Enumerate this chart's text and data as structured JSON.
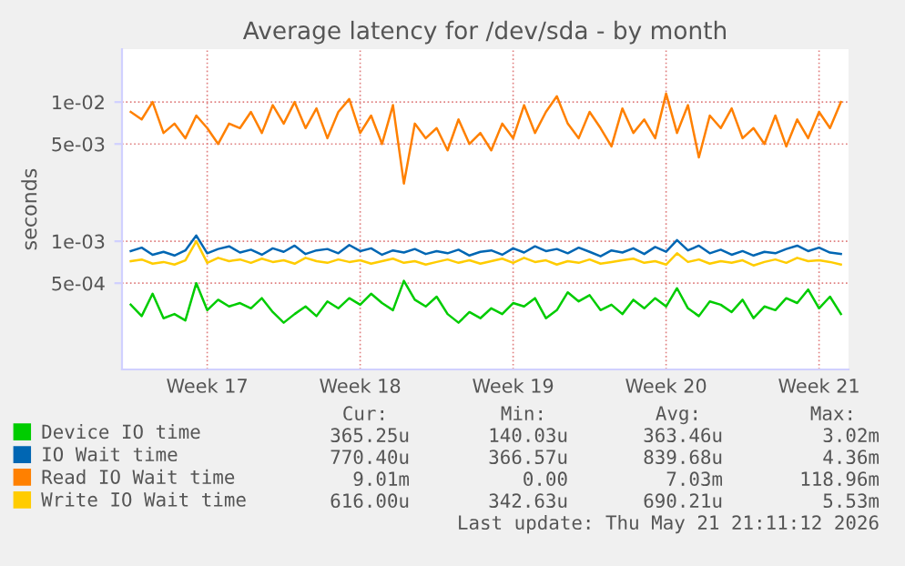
{
  "chart_data": {
    "type": "line",
    "title": "Average latency for /dev/sda - by month",
    "ylabel": "seconds",
    "categories": [
      null,
      null,
      null,
      null,
      null,
      null,
      null,
      "Week 17",
      null,
      null,
      null,
      null,
      null,
      null,
      null,
      null,
      null,
      null,
      null,
      null,
      null,
      "Week 18",
      null,
      null,
      null,
      null,
      null,
      null,
      null,
      null,
      null,
      null,
      null,
      null,
      null,
      "Week 19",
      null,
      null,
      null,
      null,
      null,
      null,
      null,
      null,
      null,
      null,
      null,
      null,
      null,
      "Week 20",
      null,
      null,
      null,
      null,
      null,
      null,
      null,
      null,
      null,
      null,
      null,
      null,
      null,
      "Week 21",
      null,
      null
    ],
    "series": [
      {
        "name": "Device IO time",
        "color": "#00cc00",
        "values": [
          0.00035,
          0.00029,
          0.00042,
          0.00028,
          0.0003,
          0.00027,
          0.0005,
          0.00032,
          0.00038,
          0.00034,
          0.00036,
          0.00033,
          0.00039,
          0.00031,
          0.00026,
          0.0003,
          0.00034,
          0.00029,
          0.00037,
          0.00033,
          0.00039,
          0.00035,
          0.00042,
          0.00036,
          0.00032,
          0.00052,
          0.00038,
          0.00034,
          0.0004,
          0.0003,
          0.00026,
          0.00031,
          0.00028,
          0.00033,
          0.0003,
          0.00036,
          0.00034,
          0.00039,
          0.00028,
          0.00032,
          0.00043,
          0.00037,
          0.00041,
          0.00032,
          0.00035,
          0.0003,
          0.00038,
          0.00033,
          0.00039,
          0.00034,
          0.00046,
          0.00033,
          0.00029,
          0.00037,
          0.00035,
          0.00031,
          0.00038,
          0.00028,
          0.00034,
          0.00032,
          0.00039,
          0.00036,
          0.00045,
          0.00033,
          0.0004,
          0.0003
        ]
      },
      {
        "name": "IO Wait time",
        "color": "#0066b3",
        "values": [
          0.00085,
          0.0009,
          0.0008,
          0.00084,
          0.00079,
          0.00086,
          0.0011,
          0.00082,
          0.00088,
          0.00092,
          0.00083,
          0.00087,
          0.0008,
          0.00089,
          0.00084,
          0.00093,
          0.00081,
          0.00086,
          0.00088,
          0.00082,
          0.00094,
          0.00085,
          0.00089,
          0.0008,
          0.00086,
          0.00083,
          0.00088,
          0.00081,
          0.00085,
          0.00082,
          0.00087,
          0.00079,
          0.00084,
          0.00086,
          0.0008,
          0.00089,
          0.00083,
          0.00092,
          0.00085,
          0.00088,
          0.00082,
          0.0009,
          0.00084,
          0.00078,
          0.00086,
          0.00083,
          0.00089,
          0.00081,
          0.00091,
          0.00084,
          0.00102,
          0.00086,
          0.00093,
          0.00082,
          0.00087,
          0.0008,
          0.00085,
          0.00079,
          0.00084,
          0.00082,
          0.00088,
          0.00093,
          0.00085,
          0.0009,
          0.00083,
          0.00081
        ]
      },
      {
        "name": "Read IO Wait time",
        "color": "#ff8000",
        "values": [
          0.0085,
          0.0075,
          0.01,
          0.006,
          0.007,
          0.0055,
          0.008,
          0.0065,
          0.005,
          0.007,
          0.0065,
          0.0085,
          0.006,
          0.0095,
          0.007,
          0.01,
          0.0065,
          0.009,
          0.0055,
          0.0085,
          0.0105,
          0.006,
          0.008,
          0.005,
          0.0095,
          0.0026,
          0.007,
          0.0055,
          0.0065,
          0.0045,
          0.0075,
          0.005,
          0.006,
          0.0045,
          0.007,
          0.0055,
          0.0095,
          0.006,
          0.0085,
          0.011,
          0.007,
          0.0055,
          0.0085,
          0.0065,
          0.0048,
          0.009,
          0.006,
          0.0075,
          0.0055,
          0.0115,
          0.006,
          0.0095,
          0.004,
          0.008,
          0.0065,
          0.009,
          0.0055,
          0.0065,
          0.005,
          0.008,
          0.0048,
          0.0075,
          0.0055,
          0.0085,
          0.0065,
          0.01
        ]
      },
      {
        "name": "Write IO Wait time",
        "color": "#ffcc00",
        "values": [
          0.00072,
          0.00074,
          0.00069,
          0.00071,
          0.00068,
          0.00073,
          0.001,
          0.0007,
          0.00076,
          0.00072,
          0.00074,
          0.0007,
          0.00075,
          0.00071,
          0.00073,
          0.00069,
          0.00076,
          0.00072,
          0.0007,
          0.00074,
          0.00071,
          0.00073,
          0.00069,
          0.00072,
          0.00075,
          0.0007,
          0.00072,
          0.00068,
          0.00071,
          0.00074,
          0.0007,
          0.00073,
          0.00069,
          0.00072,
          0.00075,
          0.0007,
          0.00076,
          0.00071,
          0.00073,
          0.00068,
          0.00072,
          0.0007,
          0.00074,
          0.00069,
          0.00071,
          0.00073,
          0.00075,
          0.0007,
          0.00072,
          0.00068,
          0.00082,
          0.00071,
          0.00074,
          0.00069,
          0.00072,
          0.0007,
          0.00073,
          0.00067,
          0.00071,
          0.00074,
          0.0007,
          0.00076,
          0.00072,
          0.00073,
          0.00071,
          0.00068
        ]
      }
    ],
    "log": "y",
    "ylim": [
      0.00012,
      0.024
    ],
    "yticks": [
      {
        "value": 0.0005,
        "label": "5e-04"
      },
      {
        "value": 0.001,
        "label": "1e-03"
      },
      {
        "value": 0.005,
        "label": "5e-03"
      },
      {
        "value": 0.01,
        "label": "1e-02"
      }
    ],
    "grid": true,
    "legend": "bottom left",
    "marker": "none",
    "line_style": "solid",
    "annotations": [
      "Cur:",
      "Min:",
      "Avg:",
      "Max:",
      "365.25u",
      "140.03u",
      "363.46u",
      "3.02m",
      "770.40u",
      "366.57u",
      "839.68u",
      "4.36m",
      "9.01m",
      "0.00",
      "7.03m",
      "118.96m",
      "616.00u",
      "342.63u",
      "690.21u",
      "5.53m",
      "Last update: Thu May 21 21:11:12 2026"
    ]
  }
}
